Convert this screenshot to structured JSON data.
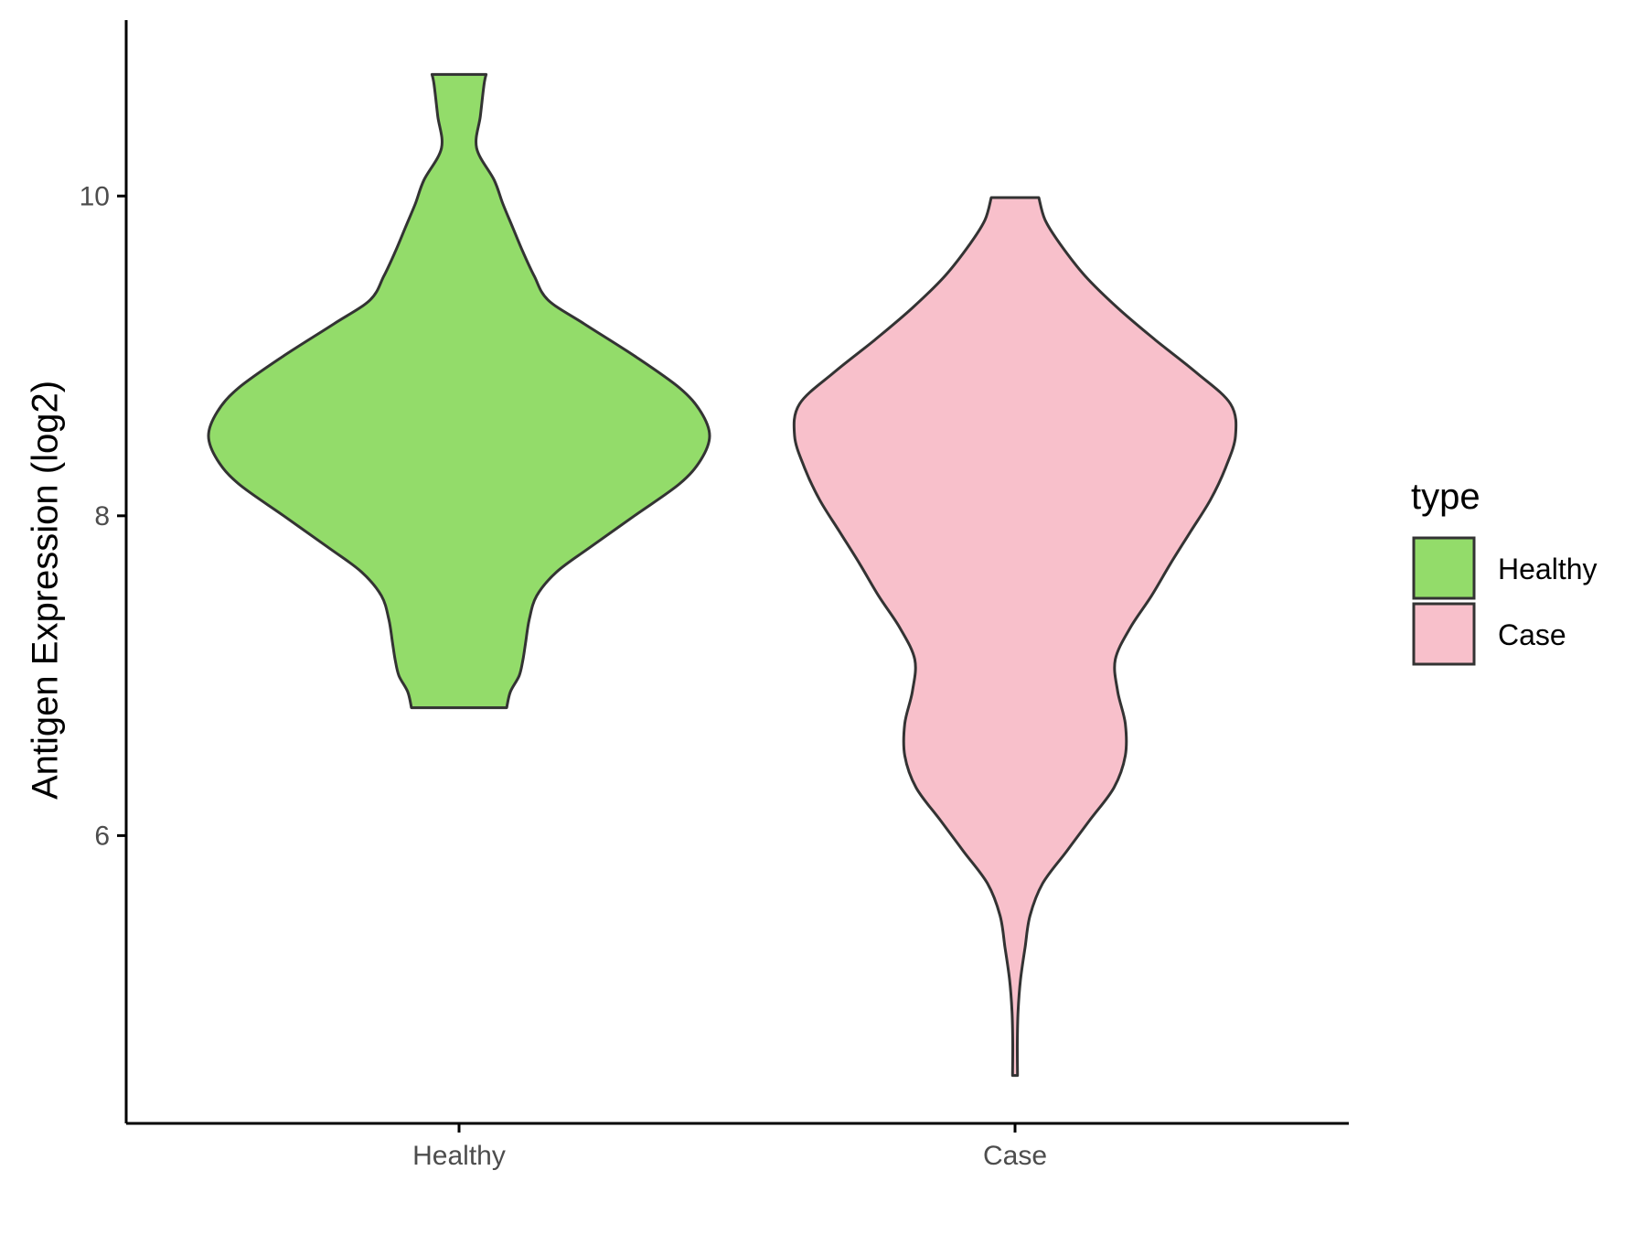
{
  "chart_data": {
    "type": "violin",
    "ylabel": "Antigen Expression (log2)",
    "ylim": [
      4.2,
      11.1
    ],
    "yticks": [
      6,
      8,
      10
    ],
    "categories": [
      "Healthy",
      "Case"
    ],
    "grid": false,
    "legend": {
      "title": "type",
      "position": "right",
      "entries": [
        {
          "label": "Healthy",
          "color": "#93dc6a"
        },
        {
          "label": "Case",
          "color": "#f8c0cb"
        }
      ]
    },
    "series": [
      {
        "category": "Healthy",
        "color": "#93dc6a",
        "min": 6.8,
        "max": 10.76,
        "density": [
          [
            6.8,
            0.19
          ],
          [
            6.9,
            0.205
          ],
          [
            7.0,
            0.24
          ],
          [
            7.1,
            0.255
          ],
          [
            7.2,
            0.265
          ],
          [
            7.35,
            0.28
          ],
          [
            7.5,
            0.31
          ],
          [
            7.65,
            0.39
          ],
          [
            7.8,
            0.52
          ],
          [
            8.0,
            0.7
          ],
          [
            8.2,
            0.88
          ],
          [
            8.35,
            0.965
          ],
          [
            8.5,
            1.0
          ],
          [
            8.65,
            0.965
          ],
          [
            8.8,
            0.88
          ],
          [
            9.0,
            0.7
          ],
          [
            9.2,
            0.5
          ],
          [
            9.35,
            0.355
          ],
          [
            9.5,
            0.3
          ],
          [
            9.65,
            0.255
          ],
          [
            9.8,
            0.215
          ],
          [
            9.95,
            0.175
          ],
          [
            10.1,
            0.14
          ],
          [
            10.3,
            0.07
          ],
          [
            10.5,
            0.085
          ],
          [
            10.7,
            0.1
          ],
          [
            10.76,
            0.108
          ]
        ]
      },
      {
        "category": "Case",
        "color": "#f8c0cb",
        "min": 4.5,
        "max": 9.99,
        "density": [
          [
            4.5,
            0.01
          ],
          [
            4.7,
            0.009
          ],
          [
            4.9,
            0.012
          ],
          [
            5.1,
            0.022
          ],
          [
            5.3,
            0.04
          ],
          [
            5.5,
            0.06
          ],
          [
            5.7,
            0.11
          ],
          [
            5.9,
            0.205
          ],
          [
            6.1,
            0.3
          ],
          [
            6.3,
            0.395
          ],
          [
            6.5,
            0.44
          ],
          [
            6.7,
            0.44
          ],
          [
            6.9,
            0.41
          ],
          [
            7.1,
            0.4
          ],
          [
            7.3,
            0.46
          ],
          [
            7.5,
            0.545
          ],
          [
            7.7,
            0.62
          ],
          [
            7.9,
            0.7
          ],
          [
            8.1,
            0.78
          ],
          [
            8.3,
            0.84
          ],
          [
            8.5,
            0.88
          ],
          [
            8.7,
            0.86
          ],
          [
            8.9,
            0.72
          ],
          [
            9.1,
            0.56
          ],
          [
            9.3,
            0.41
          ],
          [
            9.5,
            0.28
          ],
          [
            9.7,
            0.18
          ],
          [
            9.85,
            0.12
          ],
          [
            9.99,
            0.095
          ]
        ]
      }
    ]
  }
}
